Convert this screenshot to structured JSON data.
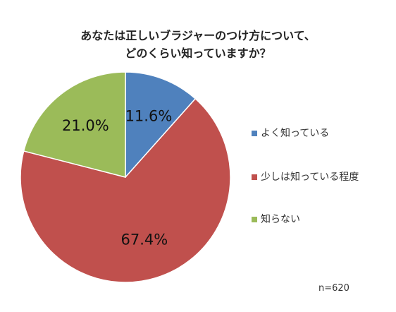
{
  "chart_data": {
    "type": "pie",
    "title_lines": [
      "あなたは正しいブラジャーのつけ方について、",
      "どのくらい知っていますか？"
    ],
    "slices": [
      {
        "label": "よく知っている",
        "value": 11.6,
        "display": "11.6%",
        "color": "#4f81bd"
      },
      {
        "label": "少しは知っている程度",
        "value": 67.4,
        "display": "67.4%",
        "color": "#c0504d"
      },
      {
        "label": "知らない",
        "value": 21.0,
        "display": "21.0%",
        "color": "#9bbb59"
      }
    ],
    "legend_position": "right",
    "note": "n=620"
  }
}
